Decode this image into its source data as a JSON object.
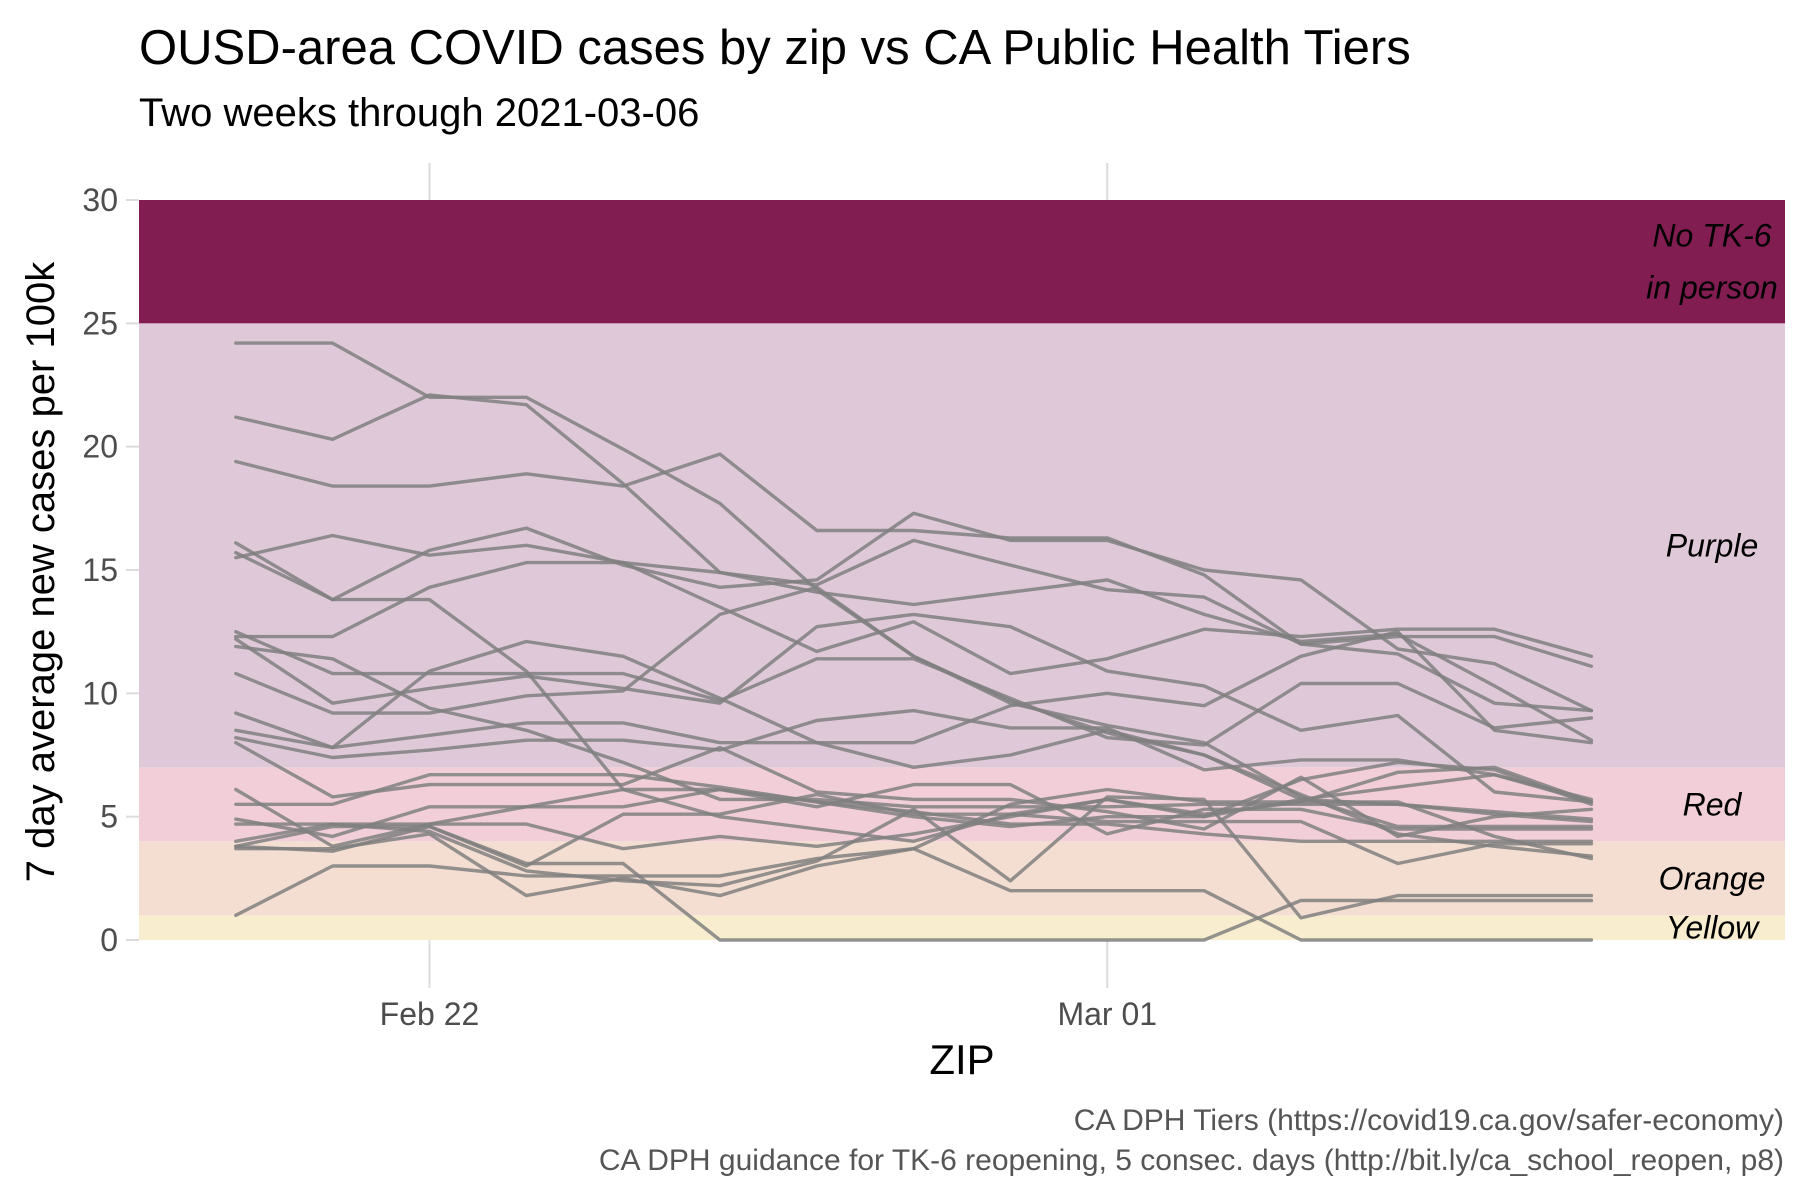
{
  "chart_data": {
    "type": "line",
    "title": "OUSD-area COVID cases by zip vs CA Public Health Tiers",
    "subtitle": "Two weeks through 2021-03-06",
    "xlabel": "ZIP",
    "ylabel": "7 day average new cases per 100k",
    "ylim": [
      0,
      30
    ],
    "xlim": [
      "2021-02-19",
      "2021-03-08"
    ],
    "x_ticks": [
      {
        "date": "2021-02-22",
        "label": "Feb 22"
      },
      {
        "date": "2021-03-01",
        "label": "Mar 01"
      }
    ],
    "y_ticks": [
      0,
      5,
      10,
      15,
      20,
      25,
      30
    ],
    "grid": true,
    "line_color": "#808080",
    "tiers": [
      {
        "name": "Yellow",
        "label": "Yellow",
        "from": 0,
        "to": 1,
        "color": "#f8edcf"
      },
      {
        "name": "Orange",
        "label": "Orange",
        "from": 1,
        "to": 4,
        "color": "#f4ded2"
      },
      {
        "name": "Red",
        "label": "Red",
        "from": 4,
        "to": 7,
        "color": "#f2cfd8"
      },
      {
        "name": "Purple",
        "label": "Purple",
        "from": 7,
        "to": 25,
        "color": "#dfc9d9"
      },
      {
        "name": "No TK-6 in person",
        "label_lines": [
          "No TK-6",
          "in person"
        ],
        "from": 25,
        "to": 30,
        "color": "#821d52"
      }
    ],
    "x": [
      "2021-02-20",
      "2021-02-21",
      "2021-02-22",
      "2021-02-23",
      "2021-02-24",
      "2021-02-25",
      "2021-02-26",
      "2021-02-27",
      "2021-02-28",
      "2021-03-01",
      "2021-03-02",
      "2021-03-03",
      "2021-03-04",
      "2021-03-05",
      "2021-03-06"
    ],
    "series": [
      {
        "values": [
          24.2,
          24.2,
          22.0,
          22.0,
          19.9,
          17.7,
          14.2,
          11.5,
          9.7,
          8.4,
          7.5,
          5.7,
          5.5,
          5.1,
          4.8
        ]
      },
      {
        "values": [
          21.2,
          20.3,
          22.1,
          21.7,
          18.5,
          14.9,
          14.4,
          16.2,
          15.2,
          14.2,
          13.9,
          12.0,
          11.6,
          9.6,
          9.3
        ]
      },
      {
        "values": [
          19.4,
          18.4,
          18.4,
          18.9,
          18.4,
          19.7,
          16.6,
          16.6,
          16.3,
          16.3,
          14.8,
          12.0,
          12.3,
          12.3,
          11.1
        ]
      },
      {
        "values": [
          16.1,
          13.8,
          15.8,
          16.7,
          15.2,
          14.3,
          14.6,
          17.3,
          16.2,
          16.2,
          15.0,
          14.6,
          11.8,
          11.2,
          9.3
        ]
      },
      {
        "values": [
          15.5,
          16.4,
          15.6,
          16.0,
          15.3,
          13.5,
          11.7,
          12.9,
          10.8,
          11.4,
          12.6,
          12.3,
          12.6,
          12.6,
          11.5
        ]
      },
      {
        "values": [
          15.7,
          13.8,
          13.8,
          10.9,
          6.1,
          5.0,
          4.5,
          4.0,
          5.1,
          5.7,
          5.1,
          5.6,
          6.8,
          7.0,
          5.6
        ]
      },
      {
        "values": [
          12.3,
          12.3,
          14.3,
          15.3,
          15.3,
          14.9,
          14.1,
          13.6,
          14.1,
          14.6,
          13.2,
          12.1,
          12.4,
          10.3,
          8.1
        ]
      },
      {
        "values": [
          12.5,
          10.8,
          10.8,
          10.8,
          10.8,
          9.7,
          11.4,
          11.4,
          9.8,
          8.2,
          7.9,
          10.4,
          10.4,
          8.6,
          9.0
        ]
      },
      {
        "values": [
          12.2,
          9.6,
          10.2,
          10.7,
          10.2,
          9.6,
          12.7,
          13.2,
          12.7,
          10.9,
          10.3,
          8.5,
          9.1,
          6.0,
          5.6
        ]
      },
      {
        "values": [
          11.9,
          11.4,
          9.4,
          8.5,
          7.2,
          5.7,
          5.7,
          5.4,
          5.4,
          5.4,
          5.5,
          5.5,
          5.5,
          5.2,
          4.9
        ]
      },
      {
        "values": [
          10.8,
          9.2,
          9.2,
          9.9,
          10.1,
          13.2,
          14.3,
          11.5,
          9.6,
          8.7,
          8.0,
          5.8,
          4.6,
          4.6,
          4.6
        ]
      },
      {
        "values": [
          9.2,
          7.8,
          10.9,
          12.1,
          11.5,
          9.8,
          8.0,
          7.0,
          7.5,
          8.5,
          7.5,
          5.9,
          4.3,
          3.8,
          3.4
        ]
      },
      {
        "values": [
          8.5,
          7.8,
          8.3,
          8.8,
          8.8,
          8.0,
          8.0,
          8.0,
          9.5,
          10.0,
          9.5,
          11.5,
          12.5,
          8.5,
          8.0
        ]
      },
      {
        "values": [
          8.2,
          7.4,
          7.7,
          8.1,
          8.1,
          7.7,
          8.9,
          9.3,
          8.6,
          8.6,
          6.9,
          7.3,
          7.3,
          6.7,
          5.6
        ]
      },
      {
        "values": [
          8.0,
          5.8,
          6.3,
          6.3,
          6.3,
          7.8,
          6.0,
          5.7,
          5.7,
          5.2,
          4.5,
          6.6,
          4.2,
          5.0,
          5.3
        ]
      },
      {
        "values": [
          6.1,
          3.8,
          4.7,
          5.4,
          6.1,
          6.1,
          5.4,
          6.3,
          6.3,
          4.3,
          5.3,
          5.3,
          4.5,
          4.5,
          4.5
        ]
      },
      {
        "values": [
          5.5,
          5.5,
          6.7,
          6.7,
          6.7,
          6.2,
          5.6,
          5.0,
          4.6,
          5.0,
          5.0,
          6.5,
          7.2,
          6.9,
          5.5
        ]
      },
      {
        "values": [
          4.9,
          4.2,
          5.4,
          5.4,
          5.4,
          6.1,
          5.6,
          5.2,
          4.7,
          4.7,
          4.3,
          4.0,
          4.0,
          4.0,
          4.0
        ]
      },
      {
        "values": [
          4.7,
          4.7,
          4.7,
          4.7,
          3.7,
          4.2,
          3.8,
          4.3,
          5.0,
          5.7,
          5.0,
          5.7,
          6.2,
          6.7,
          5.7
        ]
      },
      {
        "values": [
          3.8,
          4.6,
          4.6,
          3.0,
          5.1,
          5.1,
          5.9,
          5.1,
          5.1,
          4.8,
          4.8,
          4.8,
          3.1,
          3.9,
          3.9
        ]
      },
      {
        "values": [
          3.8,
          3.6,
          4.6,
          3.1,
          3.1,
          0.0,
          0.0,
          0.0,
          0.0,
          0.0,
          0.0,
          1.6,
          1.6,
          1.6,
          1.6
        ]
      },
      {
        "values": [
          3.7,
          3.7,
          4.3,
          1.8,
          2.5,
          1.8,
          3.0,
          3.7,
          5.5,
          6.1,
          5.6,
          5.6,
          5.6,
          4.2,
          3.3
        ]
      },
      {
        "values": [
          1.0,
          3.0,
          3.0,
          2.6,
          2.6,
          2.6,
          3.3,
          3.7,
          2.0,
          2.0,
          2.0,
          0.0,
          0.0,
          0.0,
          0.0
        ]
      },
      {
        "values": [
          4.0,
          4.7,
          4.4,
          2.8,
          2.4,
          2.2,
          3.2,
          5.3,
          2.4,
          5.8,
          5.7,
          0.9,
          1.8,
          1.8,
          1.8
        ]
      }
    ]
  },
  "captions": [
    "CA DPH Tiers (https://covid19.ca.gov/safer-economy)",
    "CA DPH guidance for TK-6 reopening, 5 consec. days (http://bit.ly/ca_school_reopen, p8)"
  ]
}
